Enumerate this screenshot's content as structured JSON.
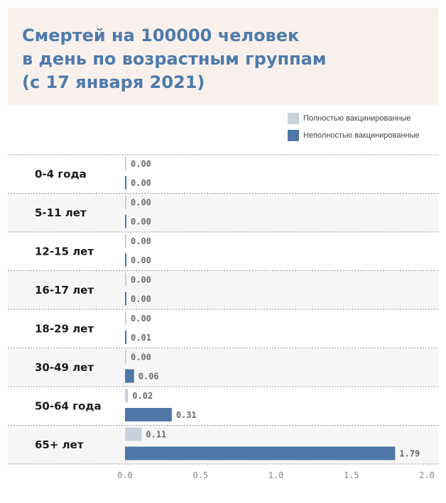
{
  "title_lines": [
    "Смертей на 100000 человек",
    "в день по возрастным группам",
    "(с 17 января  2021)"
  ],
  "legend": {
    "full": "Полностью вакцинированные",
    "partial": "Неполностью вакцинированные"
  },
  "colors": {
    "title": "#4e7aaa",
    "full": "#c7d1dc",
    "partial": "#4e76a6",
    "title_bg": "#f8f0ec",
    "band": "#f6f6f6"
  },
  "chart_data": {
    "type": "bar",
    "orientation": "horizontal",
    "title": "Смертей на 100000 человек в день по возрастным группам (с 17 января  2021)",
    "categories": [
      "0-4 года",
      "5-11 лет",
      "12-15 лет",
      "16-17 лет",
      "18-29 лет",
      "30-49 лет",
      "50-64 года",
      "65+ лет"
    ],
    "series": [
      {
        "name": "Полностью вакцинированные",
        "values": [
          0.0,
          0.0,
          0.0,
          0.0,
          0.0,
          0.0,
          0.02,
          0.11
        ],
        "labels": [
          "0.00",
          "0.00",
          "0.00",
          "0.00",
          "0.00",
          "0.00",
          "0.02",
          "0.11"
        ]
      },
      {
        "name": "Неполностью вакцинированные",
        "values": [
          0.0,
          0.0,
          0.0,
          0.0,
          0.01,
          0.06,
          0.31,
          1.79
        ],
        "labels": [
          "0.00",
          "0.00",
          "0.00",
          "0.00",
          "0.01",
          "0.06",
          "0.31",
          "1.79"
        ]
      }
    ],
    "xlim": [
      0,
      2.0
    ],
    "xticks": [
      "0.0",
      "0.5",
      "1.0",
      "1.5",
      "2.0"
    ],
    "xtick_values": [
      0,
      0.5,
      1.0,
      1.5,
      2.0
    ],
    "legend_position": "top-right",
    "grid": false
  }
}
